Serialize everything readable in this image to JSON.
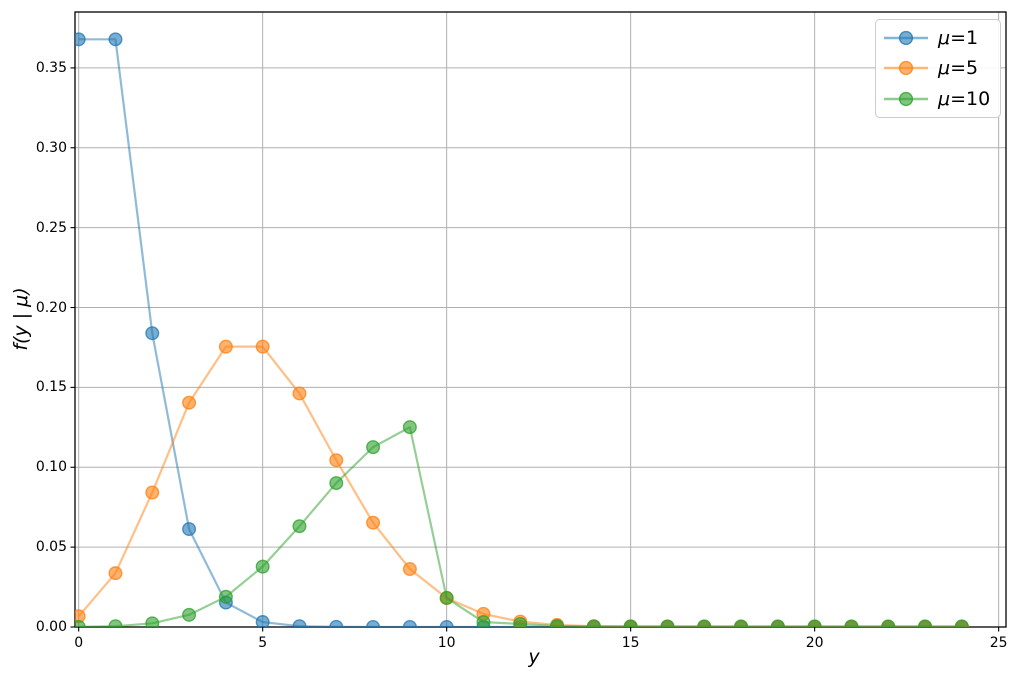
{
  "chart_data": {
    "type": "line",
    "title": "",
    "xlabel": "y",
    "ylabel": "f(y | μ)",
    "x": [
      0,
      1,
      2,
      3,
      4,
      5,
      6,
      7,
      8,
      9,
      10,
      11,
      12,
      13,
      14,
      15,
      16,
      17,
      18,
      19,
      20,
      21,
      22,
      23,
      24
    ],
    "series": [
      {
        "name": "μ=1",
        "color": "#1f77b4",
        "values": [
          0.3679,
          0.3679,
          0.1839,
          0.0613,
          0.0153,
          0.0031,
          0.0005,
          0.0001,
          0,
          0,
          0,
          0,
          0,
          0,
          0,
          0,
          0,
          0,
          0,
          0,
          0,
          0,
          0,
          0,
          0
        ]
      },
      {
        "name": "μ=5",
        "color": "#ff7f0e",
        "values": [
          0.0067,
          0.0337,
          0.0842,
          0.1404,
          0.1755,
          0.1755,
          0.1462,
          0.1044,
          0.0653,
          0.0363,
          0.0181,
          0.0082,
          0.0034,
          0.0013,
          0.0005,
          0.0002,
          0.0001,
          0,
          0,
          0,
          0,
          0,
          0,
          0,
          0
        ]
      },
      {
        "name": "μ=10",
        "color": "#2ca02c",
        "values": [
          0.0001,
          0.0005,
          0.0023,
          0.0076,
          0.0189,
          0.0378,
          0.0631,
          0.0901,
          0.1126,
          0.1251,
          0.0182,
          0.0031,
          0.0019,
          0.0006,
          0.0004,
          0.0004,
          0.0004,
          0.0004,
          0.0004,
          0.0004,
          0.0004,
          0.0004,
          0.0004,
          0.0004,
          0.0004
        ]
      }
    ],
    "xlim": [
      -0.1,
      25.2
    ],
    "ylim": [
      0,
      0.385
    ],
    "xticks": [
      0,
      5,
      10,
      15,
      20,
      25
    ],
    "yticks": [
      "0.00",
      "0.05",
      "0.10",
      "0.15",
      "0.20",
      "0.25",
      "0.30",
      "0.35"
    ],
    "grid": true,
    "grid_color": "#b0b0b0",
    "spine_color": "#000000",
    "legend_position": "upper right",
    "marker": "o",
    "alpha": 0.6
  },
  "legend": {
    "items": [
      {
        "symbol": "μ",
        "rest": "=1"
      },
      {
        "symbol": "μ",
        "rest": "=5"
      },
      {
        "symbol": "μ",
        "rest": "=10"
      }
    ]
  }
}
